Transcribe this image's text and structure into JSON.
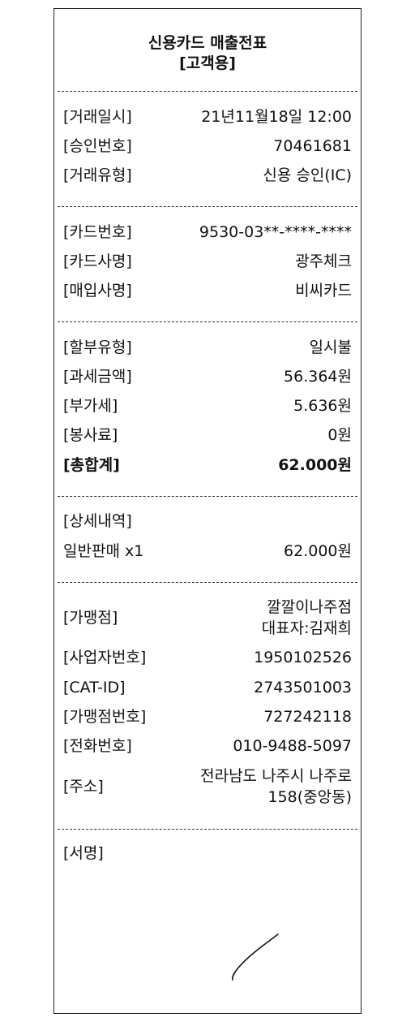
{
  "header": {
    "title": "신용카드 매출전표",
    "subtitle": "[고객용]"
  },
  "transaction": {
    "date_label": "[거래일시]",
    "date_value": "21년11월18일 12:00",
    "approval_label": "[승인번호]",
    "approval_value": "70461681",
    "type_label": "[거래유형]",
    "type_value": "신용 승인(IC)"
  },
  "card": {
    "number_label": "[카드번호]",
    "number_value": "9530-03**-****-****",
    "issuer_label": "[카드사명]",
    "issuer_value": "광주체크",
    "acquirer_label": "[매입사명]",
    "acquirer_value": "비씨카드"
  },
  "amounts": {
    "installment_label": "[할부유형]",
    "installment_value": "일시불",
    "taxable_label": "[과세금액]",
    "taxable_value": "56.364원",
    "vat_label": "[부가세]",
    "vat_value": "5.636원",
    "service_label": "[봉사료]",
    "service_value": "0원",
    "total_label": "[총합계]",
    "total_value": "62.000원"
  },
  "details": {
    "label": "[상세내역]",
    "item_name": "일반판매 x1",
    "item_amount": "62.000원"
  },
  "merchant": {
    "name_label": "[가맹점]",
    "name_line1": "깔깔이나주점",
    "name_line2": "대표자:김재희",
    "biz_no_label": "[사업자번호]",
    "biz_no_value": "1950102526",
    "cat_id_label": "[CAT-ID]",
    "cat_id_value": "2743501003",
    "merchant_no_label": "[가맹점번호]",
    "merchant_no_value": "727242118",
    "phone_label": "[전화번호]",
    "phone_value": "010-9488-5097",
    "address_label": "[주소]",
    "address_line1": "전라남도 나주시 나주로",
    "address_line2": "158(중앙동)"
  },
  "signature": {
    "label": "[서명]"
  }
}
